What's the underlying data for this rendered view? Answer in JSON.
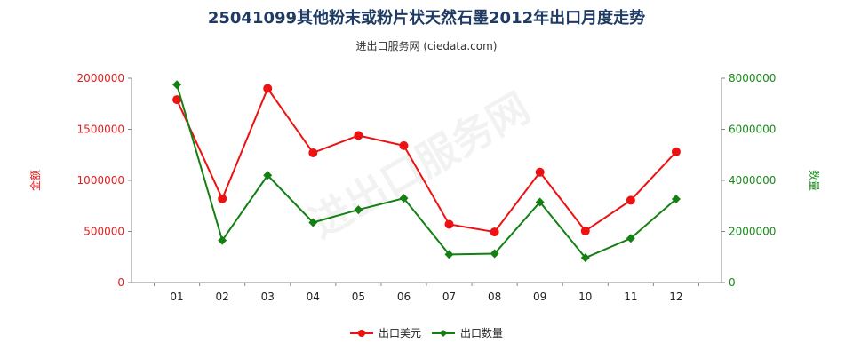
{
  "title": "25041099其他粉末或粉片状天然石墨2012年出口月度走势",
  "subtitle": "进出口服务网 (ciedata.com)",
  "watermark": "进出口服务网",
  "colors": {
    "left_axis": "#e02020",
    "right_axis": "#1a8a1a",
    "usd": "#ee1111",
    "qty": "#128012",
    "title": "#1f3b63"
  },
  "chart_data": {
    "type": "line",
    "categories": [
      "01",
      "02",
      "03",
      "04",
      "05",
      "06",
      "07",
      "08",
      "09",
      "10",
      "11",
      "12"
    ],
    "ylabel_left": "金额",
    "ylabel_right": "数量",
    "ylim_left": [
      0,
      2000000
    ],
    "ylim_right": [
      0,
      8000000
    ],
    "left_ticks": [
      "0",
      "500000",
      "1000000",
      "1500000",
      "2000000"
    ],
    "right_ticks": [
      "0",
      "2000000",
      "4000000",
      "6000000",
      "8000000"
    ],
    "grid": false,
    "legend_position": "bottom-center",
    "series": [
      {
        "name": "出口美元",
        "axis": "left",
        "color": "#ee1111",
        "values": [
          1790000,
          820000,
          1900000,
          1270000,
          1440000,
          1340000,
          570000,
          495000,
          1080000,
          505000,
          805000,
          1280000
        ]
      },
      {
        "name": "出口数量",
        "axis": "right",
        "color": "#128012",
        "values": [
          7750000,
          1650000,
          4200000,
          2350000,
          2850000,
          3300000,
          1100000,
          1130000,
          3150000,
          970000,
          1730000,
          3270000
        ]
      }
    ]
  }
}
